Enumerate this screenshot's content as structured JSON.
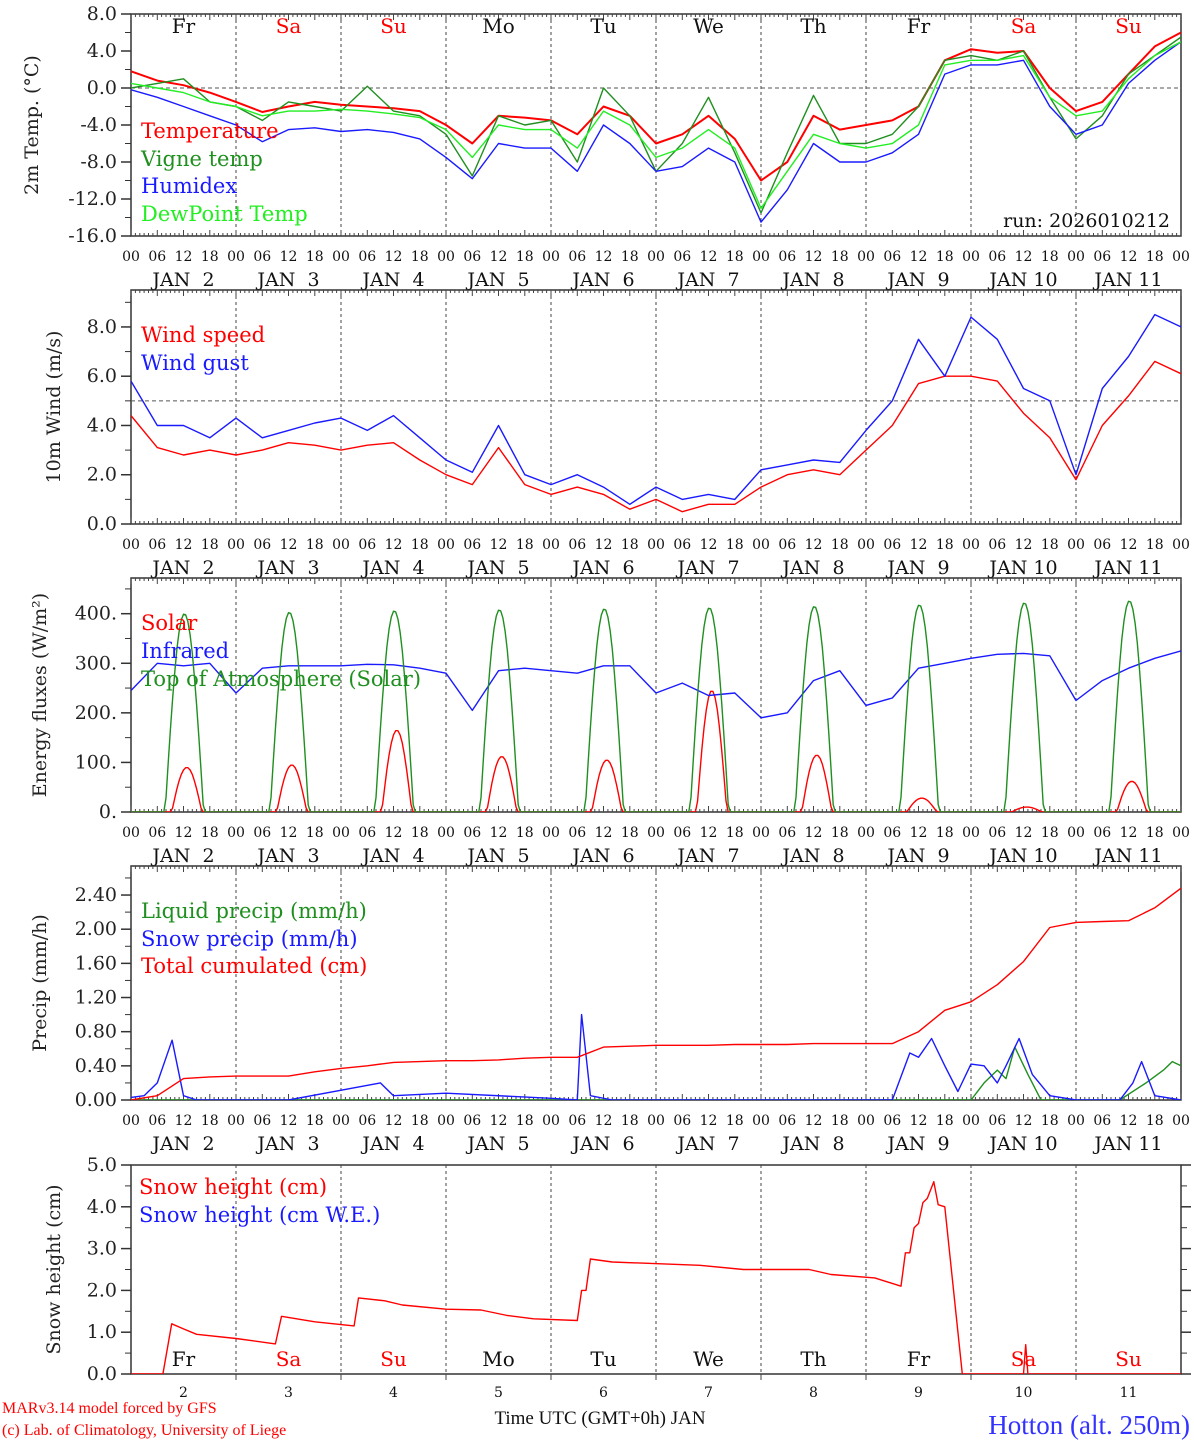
{
  "x_axis": {
    "hour_labels": [
      "00",
      "06",
      "12",
      "18"
    ],
    "date_labels": [
      "JAN  2",
      "JAN  3",
      "JAN  4",
      "JAN  5",
      "JAN  6",
      "JAN  7",
      "JAN  8",
      "JAN  9",
      "JAN 10",
      "JAN 11"
    ],
    "day_numbers": [
      "2",
      "3",
      "4",
      "5",
      "6",
      "7",
      "8",
      "9",
      "10",
      "11"
    ],
    "weekdays": [
      "Fr",
      "Sa",
      "Su",
      "Mo",
      "Tu",
      "We",
      "Th",
      "Fr",
      "Sa",
      "Su"
    ],
    "weekend": [
      false,
      true,
      true,
      false,
      false,
      false,
      false,
      false,
      true,
      true
    ],
    "range_hours": [
      0,
      240
    ],
    "title": "Time UTC (GMT+0h) JAN"
  },
  "run_label": "run: 2026010212",
  "footer": {
    "model": "MARv3.14 model forced by GFS",
    "credit": "(c) Lab. of Climatology, University of Liege",
    "station": "Hotton (alt. 250m)"
  },
  "colors": {
    "red": "#ff0000",
    "green": "#1f8f1f",
    "blue": "#1a1aff",
    "lightgreen": "#22ee22",
    "weekend": "#ff0000",
    "station": "#3333ff"
  },
  "chart_data": [
    {
      "type": "line",
      "ylabel": "2m Temp. (°C)",
      "ylim": [
        -16,
        8
      ],
      "yticks": [
        -16,
        -12,
        -8,
        -4,
        0,
        4,
        8
      ],
      "ytick_labels": [
        "-16.0",
        "-12.0",
        "-8.0",
        "-4.0",
        "0.0",
        "4.0",
        "8.0"
      ],
      "reference_line": 0,
      "series": [
        {
          "name": "Temperature",
          "color": "#ff0000",
          "step_hours": 6,
          "values": [
            1.8,
            0.8,
            0.3,
            -0.5,
            -1.5,
            -2.6,
            -2.0,
            -1.5,
            -1.8,
            -2.0,
            -2.2,
            -2.5,
            -4.0,
            -6.0,
            -3.0,
            -3.2,
            -3.5,
            -5.0,
            -2.0,
            -3.0,
            -6.0,
            -5.0,
            -3.0,
            -5.5,
            -10.0,
            -8.0,
            -3.0,
            -4.5,
            -4.0,
            -3.5,
            -2.0,
            3.0,
            4.2,
            3.8,
            4.0,
            0.0,
            -2.5,
            -1.5,
            1.5,
            4.5,
            6.0
          ]
        },
        {
          "name": "Vigne temp",
          "color": "#1f8f1f",
          "step_hours": 6,
          "values": [
            0.0,
            0.5,
            1.0,
            -1.5,
            -2.0,
            -3.5,
            -1.5,
            -2.0,
            -2.5,
            0.2,
            -2.5,
            -3.0,
            -5.0,
            -9.5,
            -3.0,
            -4.0,
            -3.5,
            -8.0,
            0.0,
            -3.0,
            -9.0,
            -6.0,
            -1.0,
            -7.0,
            -13.5,
            -7.0,
            -0.8,
            -6.0,
            -6.0,
            -5.0,
            -2.0,
            3.0,
            3.5,
            3.0,
            4.0,
            -1.0,
            -5.5,
            -3.0,
            1.5,
            3.5,
            5.5
          ]
        },
        {
          "name": "Humidex",
          "color": "#1a1aff",
          "step_hours": 6,
          "values": [
            -0.2,
            -1.0,
            -2.0,
            -3.0,
            -4.0,
            -5.8,
            -4.5,
            -4.3,
            -4.7,
            -4.5,
            -4.8,
            -5.5,
            -7.5,
            -9.8,
            -6.0,
            -6.5,
            -6.5,
            -9.0,
            -4.0,
            -6.0,
            -9.0,
            -8.5,
            -6.5,
            -8.0,
            -14.5,
            -11.0,
            -6.0,
            -8.0,
            -8.0,
            -7.0,
            -5.0,
            1.5,
            2.5,
            2.5,
            3.0,
            -2.0,
            -5.0,
            -4.0,
            0.5,
            3.0,
            5.0
          ]
        },
        {
          "name": "DewPoint Temp",
          "color": "#22ee22",
          "step_hours": 6,
          "values": [
            0.5,
            0.0,
            -0.5,
            -1.5,
            -2.0,
            -3.0,
            -2.5,
            -2.5,
            -2.3,
            -2.5,
            -2.8,
            -3.2,
            -4.5,
            -7.5,
            -4.0,
            -4.5,
            -4.5,
            -6.5,
            -2.5,
            -4.0,
            -7.5,
            -6.5,
            -4.5,
            -6.5,
            -13.0,
            -9.0,
            -5.0,
            -6.0,
            -6.5,
            -6.0,
            -4.0,
            2.5,
            3.0,
            3.0,
            3.5,
            -1.0,
            -3.0,
            -2.5,
            1.0,
            3.5,
            5.0
          ]
        }
      ]
    },
    {
      "type": "line",
      "ylabel": "10m Wind (m/s)",
      "ylim": [
        0,
        9.5
      ],
      "yticks": [
        0,
        2,
        4,
        6,
        8
      ],
      "ytick_labels": [
        "0.0",
        "2.0",
        "4.0",
        "6.0",
        "8.0"
      ],
      "reference_line": 5,
      "series": [
        {
          "name": "Wind speed",
          "color": "#ff0000",
          "step_hours": 6,
          "values": [
            4.4,
            3.1,
            2.8,
            3.0,
            2.8,
            3.0,
            3.3,
            3.2,
            3.0,
            3.2,
            3.3,
            2.6,
            2.0,
            1.6,
            3.1,
            1.6,
            1.2,
            1.5,
            1.2,
            0.6,
            1.0,
            0.5,
            0.8,
            0.8,
            1.5,
            2.0,
            2.2,
            2.0,
            3.0,
            4.0,
            5.7,
            6.0,
            6.0,
            5.8,
            4.5,
            3.5,
            1.8,
            4.0,
            5.2,
            6.6,
            6.1
          ]
        },
        {
          "name": "Wind gust",
          "color": "#1a1aff",
          "step_hours": 6,
          "values": [
            5.8,
            4.0,
            4.0,
            3.5,
            4.3,
            3.5,
            3.8,
            4.1,
            4.3,
            3.8,
            4.4,
            3.5,
            2.6,
            2.1,
            4.0,
            2.0,
            1.6,
            2.0,
            1.5,
            0.8,
            1.5,
            1.0,
            1.2,
            1.0,
            2.2,
            2.4,
            2.6,
            2.5,
            3.8,
            5.0,
            7.5,
            6.0,
            8.4,
            7.5,
            5.5,
            5.0,
            2.0,
            5.5,
            6.8,
            8.5,
            8.0
          ]
        }
      ]
    },
    {
      "type": "line",
      "ylabel": "Energy fluxes (W/m²)",
      "ylim": [
        0,
        472
      ],
      "yticks": [
        0,
        100,
        200,
        300,
        400
      ],
      "ytick_labels": [
        "0.",
        "100.",
        "200.",
        "300.",
        "400."
      ],
      "series": [
        {
          "name": "Solar",
          "color": "#ff0000",
          "daily_peak": [
            90,
            95,
            165,
            112,
            105,
            245,
            115,
            28,
            10,
            62
          ],
          "sun_hours": [
            9.3,
            16.2
          ]
        },
        {
          "name": "Infrared",
          "color": "#1a1aff",
          "step_hours": 6,
          "values": [
            245,
            300,
            295,
            300,
            240,
            290,
            295,
            295,
            295,
            298,
            297,
            290,
            280,
            205,
            285,
            290,
            285,
            280,
            295,
            295,
            240,
            260,
            235,
            240,
            190,
            200,
            265,
            285,
            215,
            230,
            290,
            300,
            310,
            318,
            320,
            315,
            225,
            265,
            290,
            310,
            325
          ]
        },
        {
          "name": "Top of Atmosphere (Solar)",
          "color": "#1f8f1f",
          "daily_peak": [
            400,
            403,
            406,
            408,
            410,
            412,
            415,
            418,
            422,
            426
          ],
          "sun_hours": [
            7.8,
            16.6
          ]
        }
      ]
    },
    {
      "type": "line",
      "ylabel": "Precip (mm/h)",
      "ylim": [
        0,
        2.74
      ],
      "yticks": [
        0,
        0.4,
        0.8,
        1.2,
        1.6,
        2.0,
        2.4
      ],
      "ytick_labels": [
        "0.00",
        "0.40",
        "0.80",
        "1.20",
        "1.60",
        "2.00",
        "2.40"
      ],
      "series": [
        {
          "name": "Liquid precip (mm/h)",
          "color": "#1f8f1f",
          "points": [
            [
              0,
              0
            ],
            [
              192,
              0
            ],
            [
              195,
              0.2
            ],
            [
              198,
              0.35
            ],
            [
              200,
              0.25
            ],
            [
              202,
              0.62
            ],
            [
              205,
              0.3
            ],
            [
              208,
              0
            ],
            [
              226,
              0
            ],
            [
              232,
              0.2
            ],
            [
              236,
              0.35
            ],
            [
              238,
              0.45
            ],
            [
              240,
              0.4
            ]
          ]
        },
        {
          "name": "Snow precip (mm/h)",
          "color": "#1a1aff",
          "points": [
            [
              0,
              0.03
            ],
            [
              3,
              0.05
            ],
            [
              6,
              0.2
            ],
            [
              9.4,
              0.7
            ],
            [
              12,
              0.05
            ],
            [
              15,
              0
            ],
            [
              36,
              0
            ],
            [
              57,
              0.2
            ],
            [
              60,
              0.05
            ],
            [
              72,
              0.08
            ],
            [
              96,
              0.02
            ],
            [
              102,
              0
            ],
            [
              103,
              1.0
            ],
            [
              105,
              0.05
            ],
            [
              110,
              0
            ],
            [
              174,
              0
            ],
            [
              178,
              0.55
            ],
            [
              180,
              0.5
            ],
            [
              183,
              0.72
            ],
            [
              186,
              0.4
            ],
            [
              189,
              0.1
            ],
            [
              192,
              0.42
            ],
            [
              195,
              0.4
            ],
            [
              198,
              0.2
            ],
            [
              200,
              0.4
            ],
            [
              203,
              0.72
            ],
            [
              206,
              0.3
            ],
            [
              210,
              0.05
            ],
            [
              216,
              0
            ],
            [
              226,
              0
            ],
            [
              229,
              0.2
            ],
            [
              231,
              0.45
            ],
            [
              234,
              0.05
            ],
            [
              240,
              0
            ]
          ]
        },
        {
          "name": "Total cumulated (cm)",
          "color": "#ff0000",
          "step_hours": 6,
          "values": [
            0,
            0.05,
            0.25,
            0.27,
            0.28,
            0.28,
            0.28,
            0.33,
            0.37,
            0.4,
            0.44,
            0.45,
            0.46,
            0.46,
            0.47,
            0.49,
            0.5,
            0.5,
            0.62,
            0.63,
            0.64,
            0.64,
            0.64,
            0.65,
            0.65,
            0.65,
            0.66,
            0.66,
            0.66,
            0.66,
            0.8,
            1.05,
            1.15,
            1.35,
            1.62,
            2.02,
            2.08,
            2.09,
            2.1,
            2.25,
            2.48
          ]
        }
      ]
    },
    {
      "type": "line",
      "ylabel": "Snow height (cm)",
      "ylim": [
        0,
        5
      ],
      "yticks": [
        0,
        1,
        2,
        3,
        4,
        5
      ],
      "ytick_labels": [
        "0.0",
        "1.0",
        "2.0",
        "3.0",
        "4.0",
        "5.0"
      ],
      "series": [
        {
          "name": "Snow height (cm)",
          "color": "#ff0000",
          "points": [
            [
              0,
              0
            ],
            [
              7.3,
              0
            ],
            [
              9.3,
              1.2
            ],
            [
              12,
              1.08
            ],
            [
              15,
              0.95
            ],
            [
              24,
              0.85
            ],
            [
              33,
              0.72
            ],
            [
              34.4,
              1.38
            ],
            [
              42,
              1.25
            ],
            [
              51,
              1.15
            ],
            [
              52,
              1.82
            ],
            [
              58,
              1.75
            ],
            [
              62,
              1.65
            ],
            [
              72,
              1.55
            ],
            [
              80,
              1.53
            ],
            [
              86,
              1.4
            ],
            [
              92,
              1.32
            ],
            [
              102,
              1.28
            ],
            [
              103,
              2.0
            ],
            [
              104,
              2.0
            ],
            [
              105,
              2.75
            ],
            [
              110,
              2.68
            ],
            [
              130,
              2.6
            ],
            [
              140,
              2.5
            ],
            [
              155,
              2.5
            ],
            [
              160,
              2.38
            ],
            [
              170,
              2.3
            ],
            [
              176,
              2.1
            ],
            [
              177,
              2.9
            ],
            [
              178,
              2.9
            ],
            [
              179,
              3.5
            ],
            [
              180,
              3.6
            ],
            [
              181,
              4.1
            ],
            [
              182,
              4.2
            ],
            [
              183.5,
              4.6
            ],
            [
              184.5,
              4.05
            ],
            [
              186,
              4.0
            ],
            [
              190,
              0
            ],
            [
              204,
              0
            ],
            [
              204.5,
              0.7
            ],
            [
              205,
              0
            ],
            [
              240,
              0
            ]
          ]
        },
        {
          "name": "Snow height (cm W.E.)",
          "color": "#1a1aff",
          "points": []
        }
      ]
    }
  ]
}
